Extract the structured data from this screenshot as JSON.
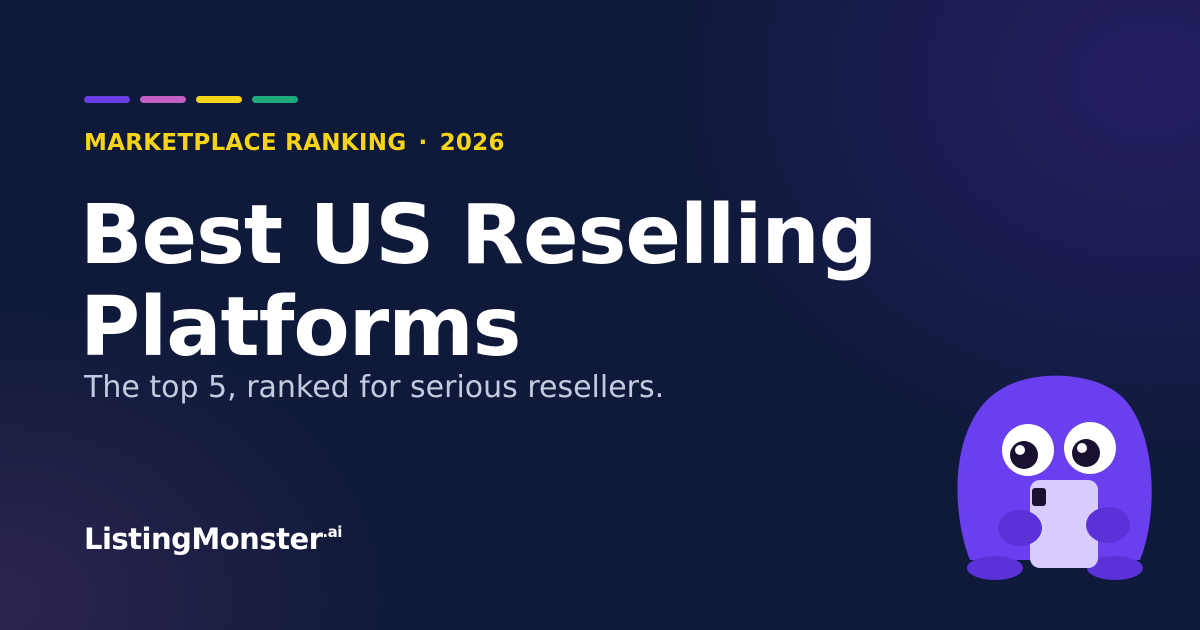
{
  "header": {
    "eyebrow": "MARKETPLACE RANKING",
    "separator": "·",
    "year": "2026"
  },
  "title": {
    "line1": "Best US Reselling",
    "line2": "Platforms"
  },
  "subtitle": "The top 5, ranked for serious resellers.",
  "brand": {
    "name": "ListingMonster",
    "suffix": ".ai"
  }
}
